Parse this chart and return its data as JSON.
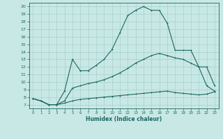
{
  "xlabel": "Humidex (Indice chaleur)",
  "bg_color": "#c8e8e5",
  "grid_color": "#a8d0cc",
  "line_color": "#1a6860",
  "xlim": [
    -0.5,
    23.5
  ],
  "ylim": [
    6.5,
    20.5
  ],
  "xticks": [
    0,
    1,
    2,
    3,
    4,
    5,
    6,
    7,
    8,
    9,
    10,
    11,
    12,
    13,
    14,
    15,
    16,
    17,
    18,
    19,
    20,
    21,
    22,
    23
  ],
  "yticks": [
    7,
    8,
    9,
    10,
    11,
    12,
    13,
    14,
    15,
    16,
    17,
    18,
    19,
    20
  ],
  "line1_x": [
    0,
    1,
    2,
    3,
    4,
    5,
    6,
    7,
    8,
    9,
    10,
    11,
    12,
    13,
    14,
    15,
    16,
    17,
    18,
    19,
    20,
    21,
    22,
    23
  ],
  "line1_y": [
    7.8,
    7.5,
    7.0,
    7.0,
    8.8,
    13.0,
    11.5,
    11.5,
    12.2,
    13.0,
    14.3,
    16.5,
    18.8,
    19.5,
    20.0,
    19.5,
    19.5,
    17.8,
    14.2,
    14.2,
    14.2,
    12.0,
    12.0,
    9.5
  ],
  "line2_x": [
    0,
    1,
    2,
    3,
    4,
    5,
    6,
    7,
    8,
    9,
    10,
    11,
    12,
    13,
    14,
    15,
    16,
    17,
    18,
    19,
    20,
    21,
    22,
    23
  ],
  "line2_y": [
    7.8,
    7.5,
    7.0,
    7.0,
    7.5,
    9.2,
    9.5,
    9.8,
    10.0,
    10.3,
    10.7,
    11.2,
    11.8,
    12.5,
    13.0,
    13.5,
    13.8,
    13.5,
    13.2,
    13.0,
    12.5,
    12.0,
    9.5,
    8.8
  ],
  "line3_x": [
    0,
    1,
    2,
    3,
    4,
    5,
    6,
    7,
    8,
    9,
    10,
    11,
    12,
    13,
    14,
    15,
    16,
    17,
    18,
    19,
    20,
    21,
    22,
    23
  ],
  "line3_y": [
    7.8,
    7.5,
    7.0,
    7.0,
    7.2,
    7.5,
    7.7,
    7.8,
    7.9,
    8.0,
    8.1,
    8.2,
    8.3,
    8.4,
    8.5,
    8.6,
    8.7,
    8.8,
    8.6,
    8.5,
    8.4,
    8.3,
    8.4,
    8.7
  ]
}
